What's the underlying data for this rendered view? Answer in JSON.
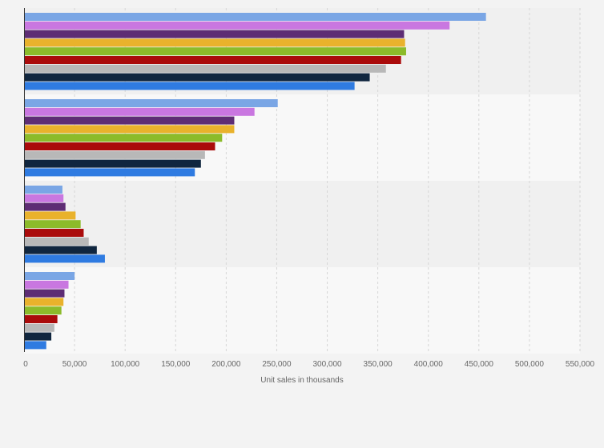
{
  "chart_data": {
    "type": "bar",
    "orientation": "horizontal",
    "title": "",
    "xlabel": "Unit sales in thousands",
    "ylabel": "",
    "xlim": [
      0,
      550000
    ],
    "xticks": [
      0,
      50000,
      100000,
      150000,
      200000,
      250000,
      300000,
      350000,
      400000,
      450000,
      500000,
      550000
    ],
    "xtick_labels": [
      "0",
      "50,000",
      "100,000",
      "150,000",
      "200,000",
      "250,000",
      "300,000",
      "350,000",
      "400,000",
      "450,000",
      "500,000",
      "550,000"
    ],
    "grid": true,
    "legend": "none",
    "categories": [
      "",
      "",
      "",
      ""
    ],
    "series": [
      {
        "name": "",
        "color": "#7aa6e5",
        "values": [
          457000,
          251000,
          38000,
          50000
        ]
      },
      {
        "name": "",
        "color": "#c977e0",
        "values": [
          421000,
          228000,
          39000,
          44000
        ]
      },
      {
        "name": "",
        "color": "#5e2d74",
        "values": [
          376000,
          208000,
          41000,
          40000
        ]
      },
      {
        "name": "",
        "color": "#e9b22c",
        "values": [
          377000,
          208000,
          51000,
          39000
        ]
      },
      {
        "name": "",
        "color": "#8cbb2a",
        "values": [
          378000,
          196000,
          56000,
          37000
        ]
      },
      {
        "name": "",
        "color": "#aa0b0b",
        "values": [
          373000,
          189000,
          59000,
          33000
        ]
      },
      {
        "name": "",
        "color": "#b8b8b8",
        "values": [
          358000,
          179000,
          64000,
          30000
        ]
      },
      {
        "name": "",
        "color": "#10263f",
        "values": [
          342000,
          175000,
          72000,
          27000
        ]
      },
      {
        "name": "",
        "color": "#2f7be1",
        "values": [
          327000,
          169000,
          80000,
          22000
        ]
      }
    ]
  }
}
